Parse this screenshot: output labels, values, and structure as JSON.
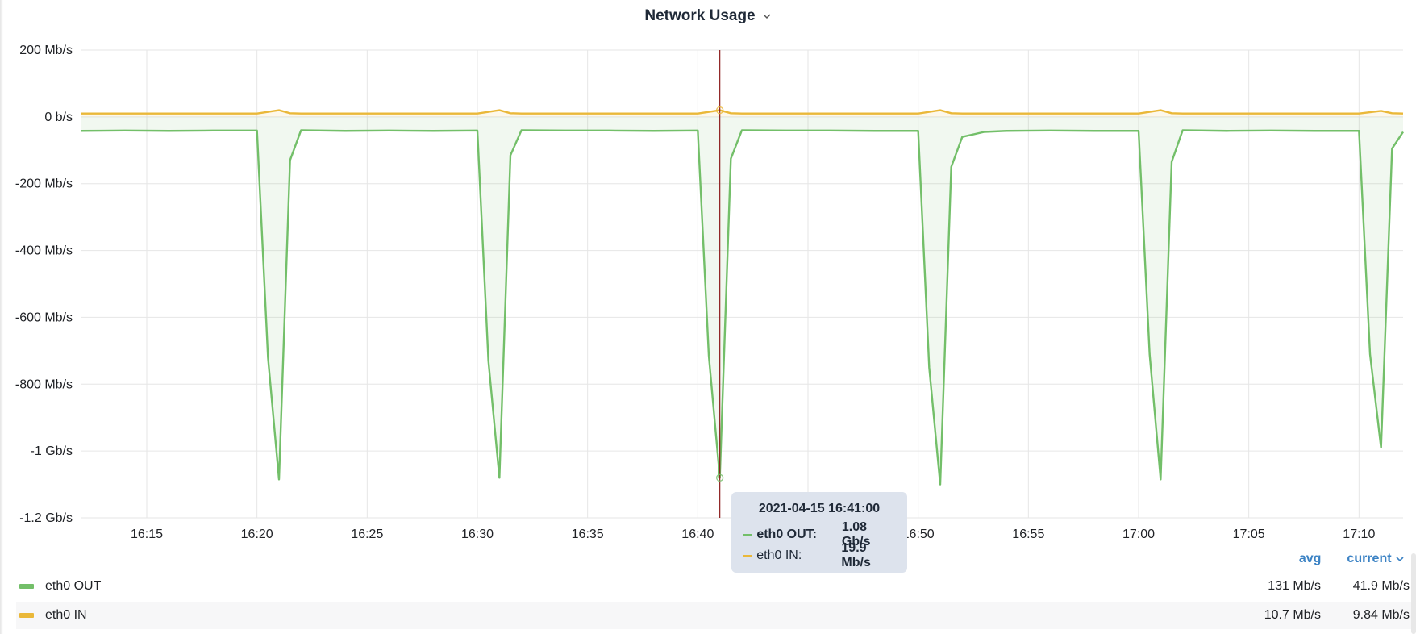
{
  "panel": {
    "title": "Network Usage",
    "title_icon": "chevron-down-icon"
  },
  "tooltip": {
    "time": "2021-04-15 16:41:00",
    "rows": [
      {
        "name": "eth0 OUT:",
        "value": "1.08 Gb/s",
        "color": "#73bf69"
      },
      {
        "name": "eth0 IN:",
        "value": "19.9 Mb/s",
        "color": "#eab839"
      }
    ]
  },
  "legend": {
    "columns": {
      "avg": "avg",
      "current": "current"
    },
    "current_icon": "chevron-down-icon",
    "items": [
      {
        "name": "eth0 OUT",
        "avg": "131 Mb/s",
        "current": "41.9 Mb/s",
        "color": "#73bf69"
      },
      {
        "name": "eth0 IN",
        "avg": "10.7 Mb/s",
        "current": "9.84 Mb/s",
        "color": "#eab839"
      }
    ]
  },
  "chart_data": {
    "type": "line",
    "title": "Network Usage",
    "xlabel": "",
    "ylabel": "",
    "y_unit": "Mb/s",
    "ylim": [
      -1200,
      200
    ],
    "yticks": [
      {
        "v": 200,
        "label": "200 Mb/s"
      },
      {
        "v": 0,
        "label": "0 b/s"
      },
      {
        "v": -200,
        "label": "-200 Mb/s"
      },
      {
        "v": -400,
        "label": "-400 Mb/s"
      },
      {
        "v": -600,
        "label": "-600 Mb/s"
      },
      {
        "v": -800,
        "label": "-800 Mb/s"
      },
      {
        "v": -1000,
        "label": "-1 Gb/s"
      },
      {
        "v": -1200,
        "label": "-1.2 Gb/s"
      }
    ],
    "xlim": [
      "16:12",
      "17:12"
    ],
    "xticks": [
      "16:15",
      "16:20",
      "16:25",
      "16:30",
      "16:35",
      "16:40",
      "16:45",
      "16:50",
      "16:55",
      "17:00",
      "17:05",
      "17:10"
    ],
    "crosshair_x": "16:41",
    "grid": true,
    "legend_position": "bottom",
    "series": [
      {
        "name": "eth0 OUT",
        "color": "#73bf69",
        "fill": true,
        "points": [
          [
            "16:12",
            -42
          ],
          [
            "16:14",
            -41
          ],
          [
            "16:16",
            -42
          ],
          [
            "16:18",
            -41
          ],
          [
            "16:20",
            -41
          ],
          [
            "16:20:30",
            -720
          ],
          [
            "16:21",
            -1085
          ],
          [
            "16:21:30",
            -130
          ],
          [
            "16:22",
            -40
          ],
          [
            "16:24",
            -42
          ],
          [
            "16:26",
            -41
          ],
          [
            "16:28",
            -42
          ],
          [
            "16:30",
            -41
          ],
          [
            "16:30:30",
            -730
          ],
          [
            "16:31",
            -1080
          ],
          [
            "16:31:30",
            -115
          ],
          [
            "16:32",
            -40
          ],
          [
            "16:34",
            -41
          ],
          [
            "16:36",
            -41
          ],
          [
            "16:38",
            -42
          ],
          [
            "16:40",
            -41
          ],
          [
            "16:40:30",
            -715
          ],
          [
            "16:41",
            -1080
          ],
          [
            "16:41:30",
            -125
          ],
          [
            "16:42",
            -40
          ],
          [
            "16:44",
            -41
          ],
          [
            "16:46",
            -41
          ],
          [
            "16:48",
            -42
          ],
          [
            "16:50",
            -42
          ],
          [
            "16:50:30",
            -750
          ],
          [
            "16:51",
            -1100
          ],
          [
            "16:51:30",
            -150
          ],
          [
            "16:52",
            -60
          ],
          [
            "16:53",
            -45
          ],
          [
            "16:54",
            -42
          ],
          [
            "16:56",
            -41
          ],
          [
            "16:58",
            -42
          ],
          [
            "17:00",
            -42
          ],
          [
            "17:00:30",
            -710
          ],
          [
            "17:01",
            -1085
          ],
          [
            "17:01:30",
            -135
          ],
          [
            "17:02",
            -40
          ],
          [
            "17:04",
            -42
          ],
          [
            "17:06",
            -41
          ],
          [
            "17:08",
            -42
          ],
          [
            "17:10",
            -42
          ],
          [
            "17:10:30",
            -710
          ],
          [
            "17:11",
            -990
          ],
          [
            "17:11:30",
            -95
          ],
          [
            "17:12",
            -45
          ]
        ]
      },
      {
        "name": "eth0 IN",
        "color": "#eab839",
        "fill": true,
        "points": [
          [
            "16:12",
            10
          ],
          [
            "16:14",
            10
          ],
          [
            "16:16",
            10
          ],
          [
            "16:18",
            10
          ],
          [
            "16:20",
            10
          ],
          [
            "16:21",
            20
          ],
          [
            "16:21:30",
            11
          ],
          [
            "16:22",
            10
          ],
          [
            "16:25",
            10
          ],
          [
            "16:28",
            10
          ],
          [
            "16:30",
            10
          ],
          [
            "16:31",
            20
          ],
          [
            "16:31:30",
            11
          ],
          [
            "16:32",
            10
          ],
          [
            "16:35",
            10
          ],
          [
            "16:38",
            10
          ],
          [
            "16:40",
            10
          ],
          [
            "16:41",
            20
          ],
          [
            "16:41:30",
            11
          ],
          [
            "16:42",
            10
          ],
          [
            "16:45",
            10
          ],
          [
            "16:48",
            10
          ],
          [
            "16:50",
            10
          ],
          [
            "16:51",
            20
          ],
          [
            "16:51:30",
            11
          ],
          [
            "16:52",
            10
          ],
          [
            "16:55",
            10
          ],
          [
            "16:58",
            10
          ],
          [
            "17:00",
            10
          ],
          [
            "17:01",
            20
          ],
          [
            "17:01:30",
            11
          ],
          [
            "17:02",
            10
          ],
          [
            "17:05",
            10
          ],
          [
            "17:08",
            10
          ],
          [
            "17:10",
            10
          ],
          [
            "17:11",
            18
          ],
          [
            "17:11:30",
            11
          ],
          [
            "17:12",
            10
          ]
        ]
      }
    ]
  }
}
